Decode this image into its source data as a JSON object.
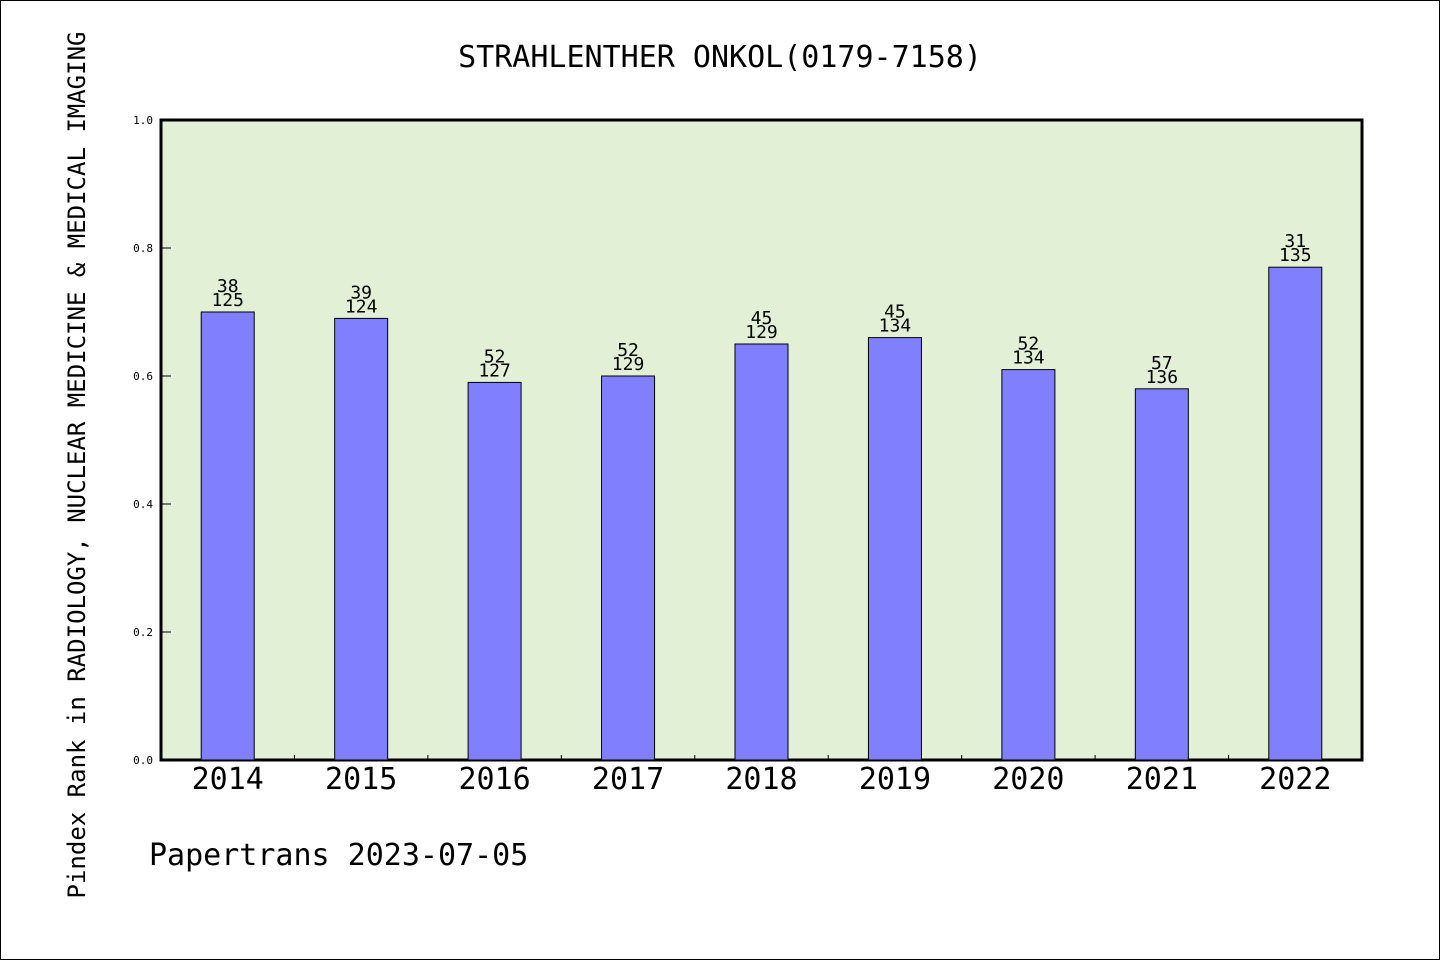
{
  "chart_data": {
    "type": "bar",
    "title": "STRAHLENTHER ONKOL(0179-7158)",
    "xlabel": "",
    "ylabel": "Pindex Rank in RADIOLOGY, NUCLEAR MEDICINE & MEDICAL IMAGING",
    "footer": "Papertrans 2023-07-05",
    "categories": [
      "2014",
      "2015",
      "2016",
      "2017",
      "2018",
      "2019",
      "2020",
      "2021",
      "2022"
    ],
    "values": [
      0.7,
      0.69,
      0.59,
      0.6,
      0.65,
      0.66,
      0.61,
      0.58,
      0.77
    ],
    "label_top": [
      "38",
      "39",
      "52",
      "52",
      "45",
      "45",
      "52",
      "57",
      "31"
    ],
    "label_bottom": [
      "125",
      "124",
      "127",
      "129",
      "129",
      "134",
      "134",
      "136",
      "135"
    ],
    "ylim": [
      0,
      1.0
    ],
    "yticks": [
      "0.0",
      "0.2",
      "0.4",
      "0.6",
      "0.8",
      "1.0"
    ],
    "grid": false,
    "colors": {
      "plot_background": "#e2f0d6",
      "bar_fill": "#8080ff",
      "bar_stroke": "#000000"
    }
  }
}
